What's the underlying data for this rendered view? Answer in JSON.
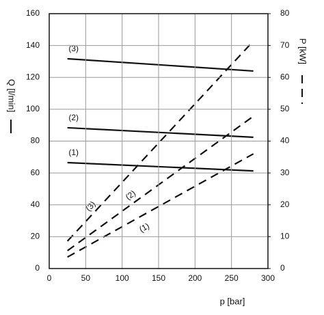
{
  "chart_data": {
    "type": "line",
    "x_label": "p [bar]",
    "y_label": "Q [l/min]",
    "y2_label": "P [kW]",
    "xlim": [
      0,
      300
    ],
    "xticks": [
      0,
      50,
      100,
      150,
      200,
      250,
      300
    ],
    "ylim": [
      0,
      160
    ],
    "yticks": [
      0,
      20,
      40,
      60,
      80,
      100,
      120,
      140,
      160
    ],
    "y2lim": [
      0,
      80
    ],
    "y2ticks": [
      0,
      10,
      20,
      30,
      40,
      50,
      60,
      70,
      80
    ],
    "grid": true,
    "x": [
      25,
      280
    ],
    "series": [
      {
        "name": "(3)",
        "color": "#111111",
        "style": "solid",
        "values": [
          131.7,
          124
        ]
      },
      {
        "name": "(2)",
        "color": "#111111",
        "style": "solid",
        "values": [
          88.4,
          82.4
        ]
      },
      {
        "name": "(1)",
        "color": "#111111",
        "style": "solid",
        "values": [
          66.5,
          61.3
        ]
      },
      {
        "name": "(3)",
        "color": "#111111",
        "style": "dashed",
        "axis": "y2",
        "values": [
          8.6,
          71.4
        ]
      },
      {
        "name": "(2)",
        "color": "#111111",
        "style": "dashed",
        "axis": "y2",
        "values": [
          5.6,
          47.8
        ]
      },
      {
        "name": "(1)",
        "color": "#111111",
        "style": "dashed",
        "axis": "y2",
        "values": [
          3.6,
          36
        ]
      }
    ]
  }
}
